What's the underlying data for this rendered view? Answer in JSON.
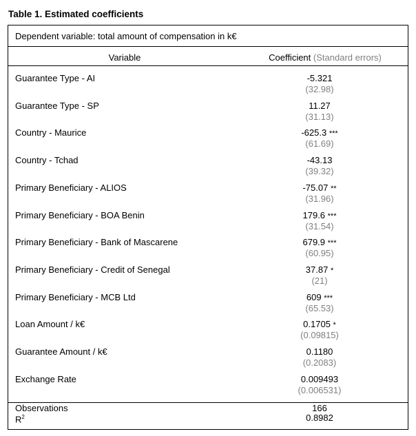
{
  "title": "Table 1. Estimated coefficients",
  "dependent_variable": "Dependent variable: total amount of compensation in k€",
  "header": {
    "variable": "Variable",
    "coefficient": "Coefficient",
    "standard_errors": "(Standard errors)"
  },
  "rows": [
    {
      "label": "Guarantee Type - AI",
      "coef": "-5.321",
      "stars": "",
      "se": "(32.98)"
    },
    {
      "label": "Guarantee Type - SP",
      "coef": "11.27",
      "stars": "",
      "se": "(31.13)"
    },
    {
      "label": "Country - Maurice",
      "coef": "-625.3",
      "stars": "***",
      "se": "(61.69)"
    },
    {
      "label": "Country - Tchad",
      "coef": "-43.13",
      "stars": "",
      "se": "(39.32)"
    },
    {
      "label": "Primary Beneficiary - ALIOS",
      "coef": "-75.07",
      "stars": "**",
      "se": "(31.96)"
    },
    {
      "label": "Primary Beneficiary - BOA Benin",
      "coef": "179.6",
      "stars": "***",
      "se": "(31.54)"
    },
    {
      "label": "Primary Beneficiary - Bank of Mascarene",
      "coef": "679.9",
      "stars": "***",
      "se": "(60.95)"
    },
    {
      "label": "Primary Beneficiary - Credit of Senegal",
      "coef": "37.87",
      "stars": "*",
      "se": "(21)"
    },
    {
      "label": "Primary Beneficiary - MCB Ltd",
      "coef": "609",
      "stars": "***",
      "se": "(65.53)"
    },
    {
      "label": "Loan Amount / k€",
      "coef": "0.1705",
      "stars": "*",
      "se": "(0.09815)"
    },
    {
      "label": "Guarantee Amount / k€",
      "coef": "0.1180",
      "stars": "",
      "se": "(0.2083)"
    },
    {
      "label": "Exchange Rate",
      "coef": "0.009493",
      "stars": "",
      "se": "(0.006531)"
    }
  ],
  "footer": {
    "observations_label": "Observations",
    "observations_value": "166",
    "r2_label": "R",
    "r2_sup": "2",
    "r2_value": "0.8982"
  }
}
